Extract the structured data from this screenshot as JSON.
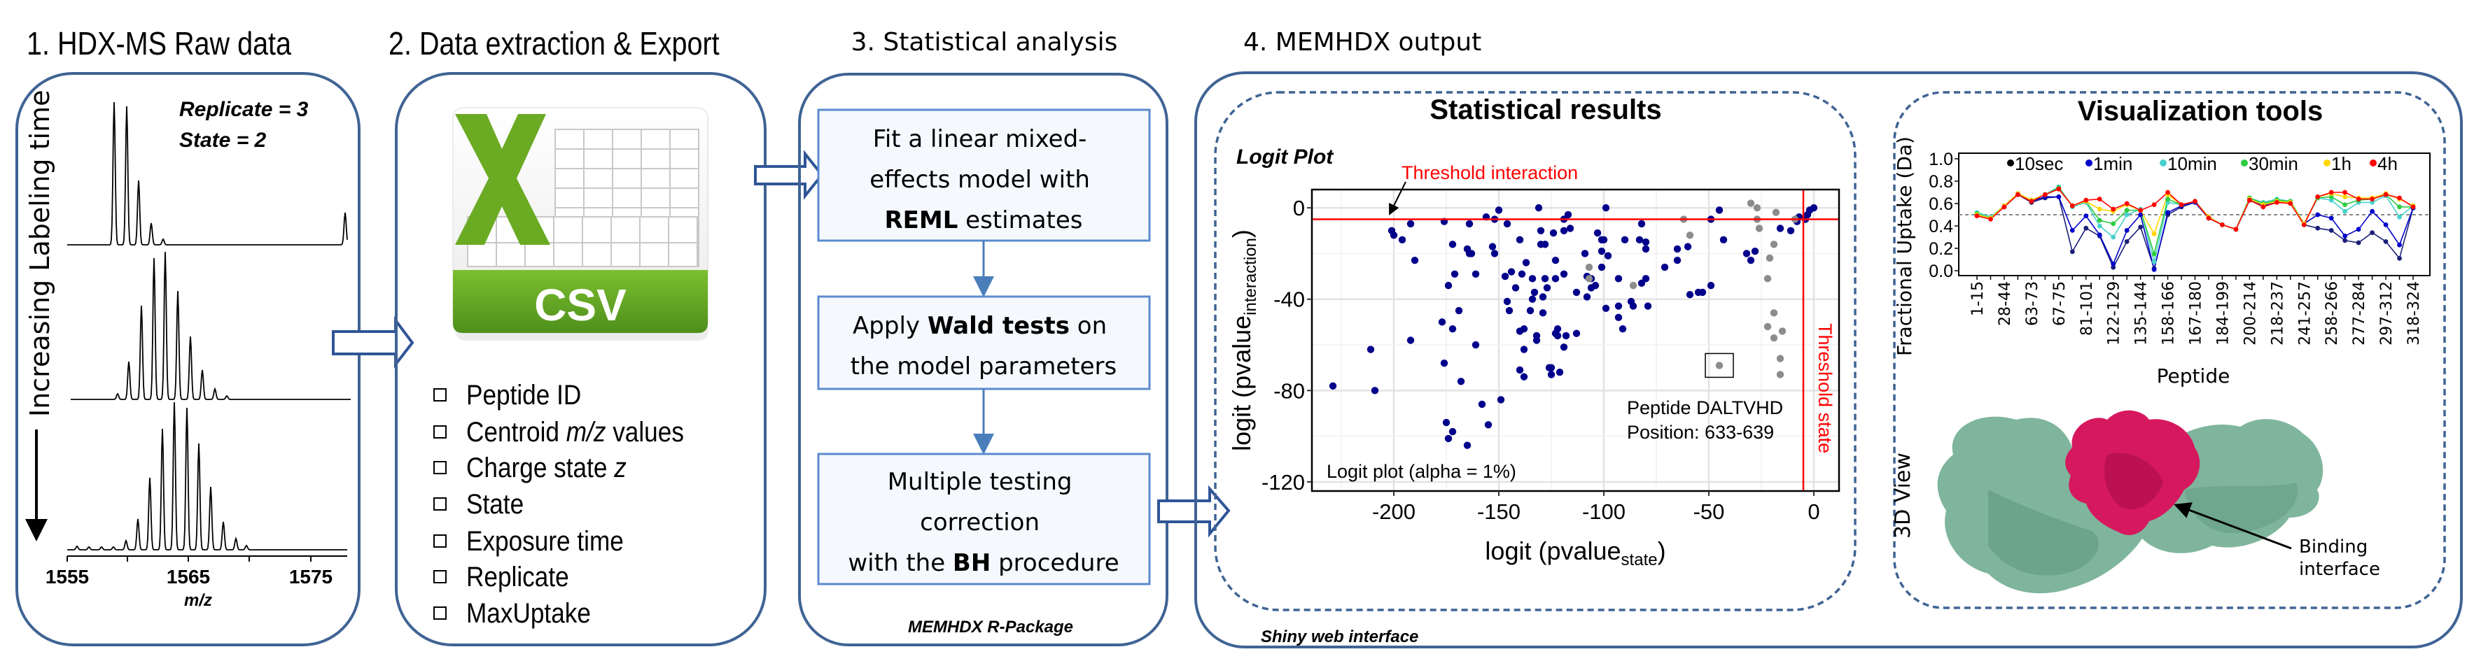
{
  "panel1": {
    "title": "1. HDX-MS Raw data",
    "replicate": "Replicate = 3",
    "state": "State = 2",
    "time_axis_label": "Increasing Labeling time",
    "x_ticks": [
      "1555",
      "1565",
      "1575"
    ],
    "x_label": "m/z"
  },
  "panel2": {
    "title": "2. Data extraction & Export",
    "file_icon_label": "CSV",
    "fields": [
      {
        "pre": "Peptide ID",
        "em": "",
        "post": ""
      },
      {
        "pre": "Centroid ",
        "em": "m/z",
        "post": " values"
      },
      {
        "pre": "Charge state ",
        "em": "z",
        "post": ""
      },
      {
        "pre": "State",
        "em": "",
        "post": ""
      },
      {
        "pre": "Exposure time",
        "em": "",
        "post": ""
      },
      {
        "pre": "Replicate",
        "em": "",
        "post": ""
      },
      {
        "pre": "MaxUptake",
        "em": "",
        "post": ""
      }
    ]
  },
  "panel3": {
    "title": "3. Statistical analysis",
    "step1": {
      "line1": "Fit a linear mixed-",
      "line2": "effects model with",
      "bold": "REML",
      "rest": " estimates"
    },
    "step2": {
      "pre": "Apply ",
      "bold": "Wald tests",
      "post": " on",
      "line2": "the model parameters"
    },
    "step3": {
      "line1": "Multiple testing",
      "line2": "correction",
      "pre": "with the ",
      "bold": "BH",
      "post": " procedure"
    },
    "footer": "MEMHDX R-Package"
  },
  "panel4": {
    "title": "4. MEMHDX output",
    "footer": "Shiny web interface",
    "stats_title": "Statistical results",
    "viz_title": "Visualization tools",
    "view3d_label": "3D View",
    "binding_label_1": "Binding",
    "binding_label_2": "interface"
  },
  "colors": {
    "panel_border": "#3f6394",
    "significant": "#00008b",
    "not_significant": "#8c8c8c",
    "threshold": "#ff0000",
    "csv_green": "#5fa324",
    "protein": "#7fb59c",
    "binding_site": "#d6185f"
  },
  "chart_data": [
    {
      "type": "scatter",
      "title": "Logit Plot",
      "xlabel": "logit (pvalue",
      "xlabel_sub": "state",
      "ylabel": "logit (pvalue",
      "ylabel_sub": "interaction",
      "xlim": [
        -239,
        12
      ],
      "ylim": [
        -124,
        8
      ],
      "x_ticks": [
        -200,
        -150,
        -100,
        -50,
        0
      ],
      "y_ticks": [
        0,
        -40,
        -80,
        -120
      ],
      "grid": true,
      "threshold_interaction": -5,
      "threshold_state": -5,
      "annotations": {
        "threshold_interaction": "Threshold interaction",
        "threshold_state": "Threshold state",
        "peptide": "Peptide DALTVHD",
        "position": "Position: 633-639",
        "alpha": "Logit plot (alpha = 1%)"
      },
      "highlighted_point": [
        -45,
        -69
      ],
      "series": [
        {
          "color": "#00008b",
          "points": [
            [
              -229,
              -78
            ],
            [
              -209,
              -80
            ],
            [
              -211,
              -62
            ],
            [
              -201,
              -10
            ],
            [
              -200,
              -12
            ],
            [
              -196,
              -14
            ],
            [
              -192,
              -7
            ],
            [
              -190,
              -23
            ],
            [
              -192,
              -58
            ],
            [
              -177,
              -50
            ],
            [
              -176,
              -6
            ],
            [
              -176,
              -68
            ],
            [
              -175,
              -94
            ],
            [
              -174,
              -101
            ],
            [
              -174,
              -34
            ],
            [
              -172,
              -16
            ],
            [
              -172,
              -98
            ],
            [
              -172,
              -53
            ],
            [
              -171,
              -29
            ],
            [
              -169,
              -45
            ],
            [
              -168,
              -76
            ],
            [
              -165,
              -18
            ],
            [
              -164,
              -7
            ],
            [
              -164,
              -20
            ],
            [
              -163,
              -20
            ],
            [
              -165,
              -104
            ],
            [
              -161,
              -60
            ],
            [
              -161,
              -29
            ],
            [
              -158,
              -86
            ],
            [
              -156,
              -4
            ],
            [
              -155,
              -95
            ],
            [
              -153,
              -17
            ],
            [
              -152,
              -20
            ],
            [
              -152,
              -5
            ],
            [
              -150,
              -1
            ],
            [
              -149,
              -84
            ],
            [
              -147,
              -30
            ],
            [
              -146,
              -41
            ],
            [
              -146,
              -7
            ],
            [
              -145,
              -45
            ],
            [
              -144,
              -28
            ],
            [
              -142,
              -35
            ],
            [
              -140,
              -14
            ],
            [
              -140,
              -54
            ],
            [
              -139,
              -29
            ],
            [
              -140,
              -71
            ],
            [
              -138,
              -74
            ],
            [
              -138,
              -62
            ],
            [
              -138,
              -53
            ],
            [
              -137,
              -24
            ],
            [
              -135,
              -45
            ],
            [
              -134,
              -31
            ],
            [
              -134,
              -40
            ],
            [
              -133,
              -37
            ],
            [
              -132,
              -58
            ],
            [
              -132,
              -56
            ],
            [
              -131,
              0
            ],
            [
              -130,
              -10
            ],
            [
              -130,
              -16
            ],
            [
              -129,
              -39
            ],
            [
              -129,
              -46
            ],
            [
              -128,
              -31
            ],
            [
              -128,
              -16
            ],
            [
              -127,
              -35
            ],
            [
              -126,
              -70
            ],
            [
              -125,
              -70
            ],
            [
              -124,
              -11
            ],
            [
              -123,
              -31
            ],
            [
              -123,
              -55
            ],
            [
              -125,
              -73
            ],
            [
              -122,
              -56
            ],
            [
              -123,
              -23
            ],
            [
              -122,
              -53
            ],
            [
              -121,
              -72
            ],
            [
              -119,
              -5
            ],
            [
              -119,
              -29
            ],
            [
              -119,
              -61
            ],
            [
              -119,
              -10
            ],
            [
              -118,
              -56
            ],
            [
              -117,
              -3
            ],
            [
              -116,
              -9
            ],
            [
              -113,
              -37
            ],
            [
              -113,
              -55
            ],
            [
              -109,
              -20
            ],
            [
              -108,
              -30
            ],
            [
              -108,
              -39
            ],
            [
              -106,
              -31
            ],
            [
              -106,
              -35
            ],
            [
              -104,
              -34
            ],
            [
              -103,
              -11
            ],
            [
              -101,
              -14
            ],
            [
              -100,
              -14
            ],
            [
              -101,
              -26
            ],
            [
              -101,
              -19
            ],
            [
              -98,
              -21
            ],
            [
              -99,
              0
            ],
            [
              -99,
              -44
            ],
            [
              -93,
              -31
            ],
            [
              -93,
              -43
            ],
            [
              -93,
              -48
            ],
            [
              -91,
              -53
            ],
            [
              -90,
              -14
            ],
            [
              -87,
              -41
            ],
            [
              -86,
              -43
            ],
            [
              -83,
              -14
            ],
            [
              -82,
              -7
            ],
            [
              -82,
              -33
            ],
            [
              -80,
              -31
            ],
            [
              -80,
              -15
            ],
            [
              -80,
              -18
            ],
            [
              -79,
              -43
            ],
            [
              -71,
              -26
            ],
            [
              -65,
              -23
            ],
            [
              -65,
              -18
            ],
            [
              -60,
              -17
            ],
            [
              -59,
              -38
            ],
            [
              -55,
              -37
            ],
            [
              -53,
              -37
            ],
            [
              -49,
              -5
            ],
            [
              -49,
              -34
            ],
            [
              -45,
              -1
            ],
            [
              -43,
              -14
            ],
            [
              -32,
              -20
            ],
            [
              -30,
              -23
            ],
            [
              -28,
              -19
            ],
            [
              -16,
              -9
            ],
            [
              -11,
              -10
            ],
            [
              -8,
              -6
            ],
            [
              -7,
              -4
            ],
            [
              -4,
              -5
            ],
            [
              -3,
              -3
            ],
            [
              -2,
              -1
            ],
            [
              0,
              0
            ]
          ]
        },
        {
          "color": "#8c8c8c",
          "points": [
            [
              -107,
              -26
            ],
            [
              -107,
              -31
            ],
            [
              -86,
              -34
            ],
            [
              -62,
              -5
            ],
            [
              -59,
              -12
            ],
            [
              -45,
              -69
            ],
            [
              -30,
              2
            ],
            [
              -27,
              0
            ],
            [
              -27,
              -5
            ],
            [
              -26,
              -9
            ],
            [
              -18,
              -2
            ],
            [
              -19,
              -16
            ],
            [
              -21,
              -22
            ],
            [
              -22,
              -31
            ],
            [
              -19,
              -46
            ],
            [
              -22,
              -52
            ],
            [
              -15,
              -54
            ],
            [
              -19,
              -57
            ],
            [
              -16,
              -66
            ],
            [
              -16,
              -73
            ],
            [
              -9,
              -5
            ]
          ]
        }
      ]
    },
    {
      "type": "line",
      "xlabel": "Peptide",
      "ylabel": "Fractional Uptake (Da)",
      "ylim": [
        0,
        1
      ],
      "y_ticks": [
        "0.0",
        "0.2",
        "0.4",
        "0.6",
        "0.8",
        "1.0"
      ],
      "reference_line": 0.5,
      "legend_position": "top",
      "x_tick_labels": [
        "1-15",
        "28-44",
        "63-73",
        "67-75",
        "81-101",
        "122-129",
        "135-144",
        "158-166",
        "167-180",
        "184-199",
        "200-214",
        "218-237",
        "241-257",
        "258-266",
        "277-284",
        "297-312",
        "318-324"
      ],
      "series": [
        {
          "name": "10sec",
          "color": "#1a1f78",
          "legend_color": "#000000",
          "values": [
            0.5,
            0.47,
            0.57,
            0.68,
            0.61,
            0.65,
            0.66,
            0.17,
            0.38,
            0.31,
            0.03,
            0.26,
            0.39,
            0.02,
            0.5,
            0.57,
            0.61,
            0.47,
            0.41,
            0.37,
            0.63,
            0.58,
            0.62,
            0.61,
            0.41,
            0.38,
            0.36,
            0.27,
            0.25,
            0.34,
            0.26,
            0.11,
            0.56
          ]
        },
        {
          "name": "1min",
          "color": "#0000cc",
          "legend_color": "#0000cc",
          "values": [
            0.5,
            0.47,
            0.57,
            0.68,
            0.62,
            0.66,
            0.66,
            0.36,
            0.49,
            0.32,
            0.06,
            0.36,
            0.5,
            0.01,
            0.52,
            0.58,
            0.61,
            0.47,
            0.41,
            0.37,
            0.63,
            0.58,
            0.62,
            0.61,
            0.42,
            0.5,
            0.47,
            0.31,
            0.37,
            0.53,
            0.41,
            0.23,
            0.56
          ]
        },
        {
          "name": "10min",
          "color": "#48d1cc",
          "legend_color": "#48d1cc",
          "values": [
            0.52,
            0.48,
            0.58,
            0.69,
            0.63,
            0.68,
            0.75,
            0.57,
            0.61,
            0.4,
            0.3,
            0.5,
            0.55,
            0.08,
            0.61,
            0.59,
            0.62,
            0.48,
            0.41,
            0.37,
            0.65,
            0.61,
            0.64,
            0.62,
            0.42,
            0.65,
            0.63,
            0.53,
            0.61,
            0.61,
            0.67,
            0.48,
            0.58
          ]
        },
        {
          "name": "30min",
          "color": "#2ecc40",
          "legend_color": "#2ecc40",
          "values": [
            0.51,
            0.47,
            0.58,
            0.69,
            0.63,
            0.68,
            0.74,
            0.58,
            0.62,
            0.45,
            0.42,
            0.54,
            0.54,
            0.15,
            0.64,
            0.59,
            0.62,
            0.48,
            0.41,
            0.37,
            0.65,
            0.6,
            0.63,
            0.62,
            0.42,
            0.65,
            0.66,
            0.59,
            0.63,
            0.64,
            0.68,
            0.57,
            0.57
          ]
        },
        {
          "name": "1h",
          "color": "#ffd700",
          "legend_color": "#ffd700",
          "values": [
            0.5,
            0.47,
            0.58,
            0.69,
            0.63,
            0.68,
            0.73,
            0.58,
            0.62,
            0.55,
            0.53,
            0.59,
            0.54,
            0.33,
            0.68,
            0.59,
            0.62,
            0.48,
            0.41,
            0.37,
            0.64,
            0.59,
            0.62,
            0.61,
            0.42,
            0.66,
            0.69,
            0.66,
            0.65,
            0.65,
            0.69,
            0.64,
            0.58
          ]
        },
        {
          "name": "4h",
          "color": "#ff0000",
          "legend_color": "#ff0000",
          "values": [
            0.49,
            0.46,
            0.57,
            0.68,
            0.62,
            0.68,
            0.73,
            0.58,
            0.63,
            0.64,
            0.55,
            0.6,
            0.54,
            0.59,
            0.7,
            0.59,
            0.62,
            0.47,
            0.41,
            0.37,
            0.63,
            0.57,
            0.61,
            0.6,
            0.41,
            0.66,
            0.7,
            0.7,
            0.64,
            0.64,
            0.68,
            0.65,
            0.57
          ]
        }
      ]
    }
  ]
}
